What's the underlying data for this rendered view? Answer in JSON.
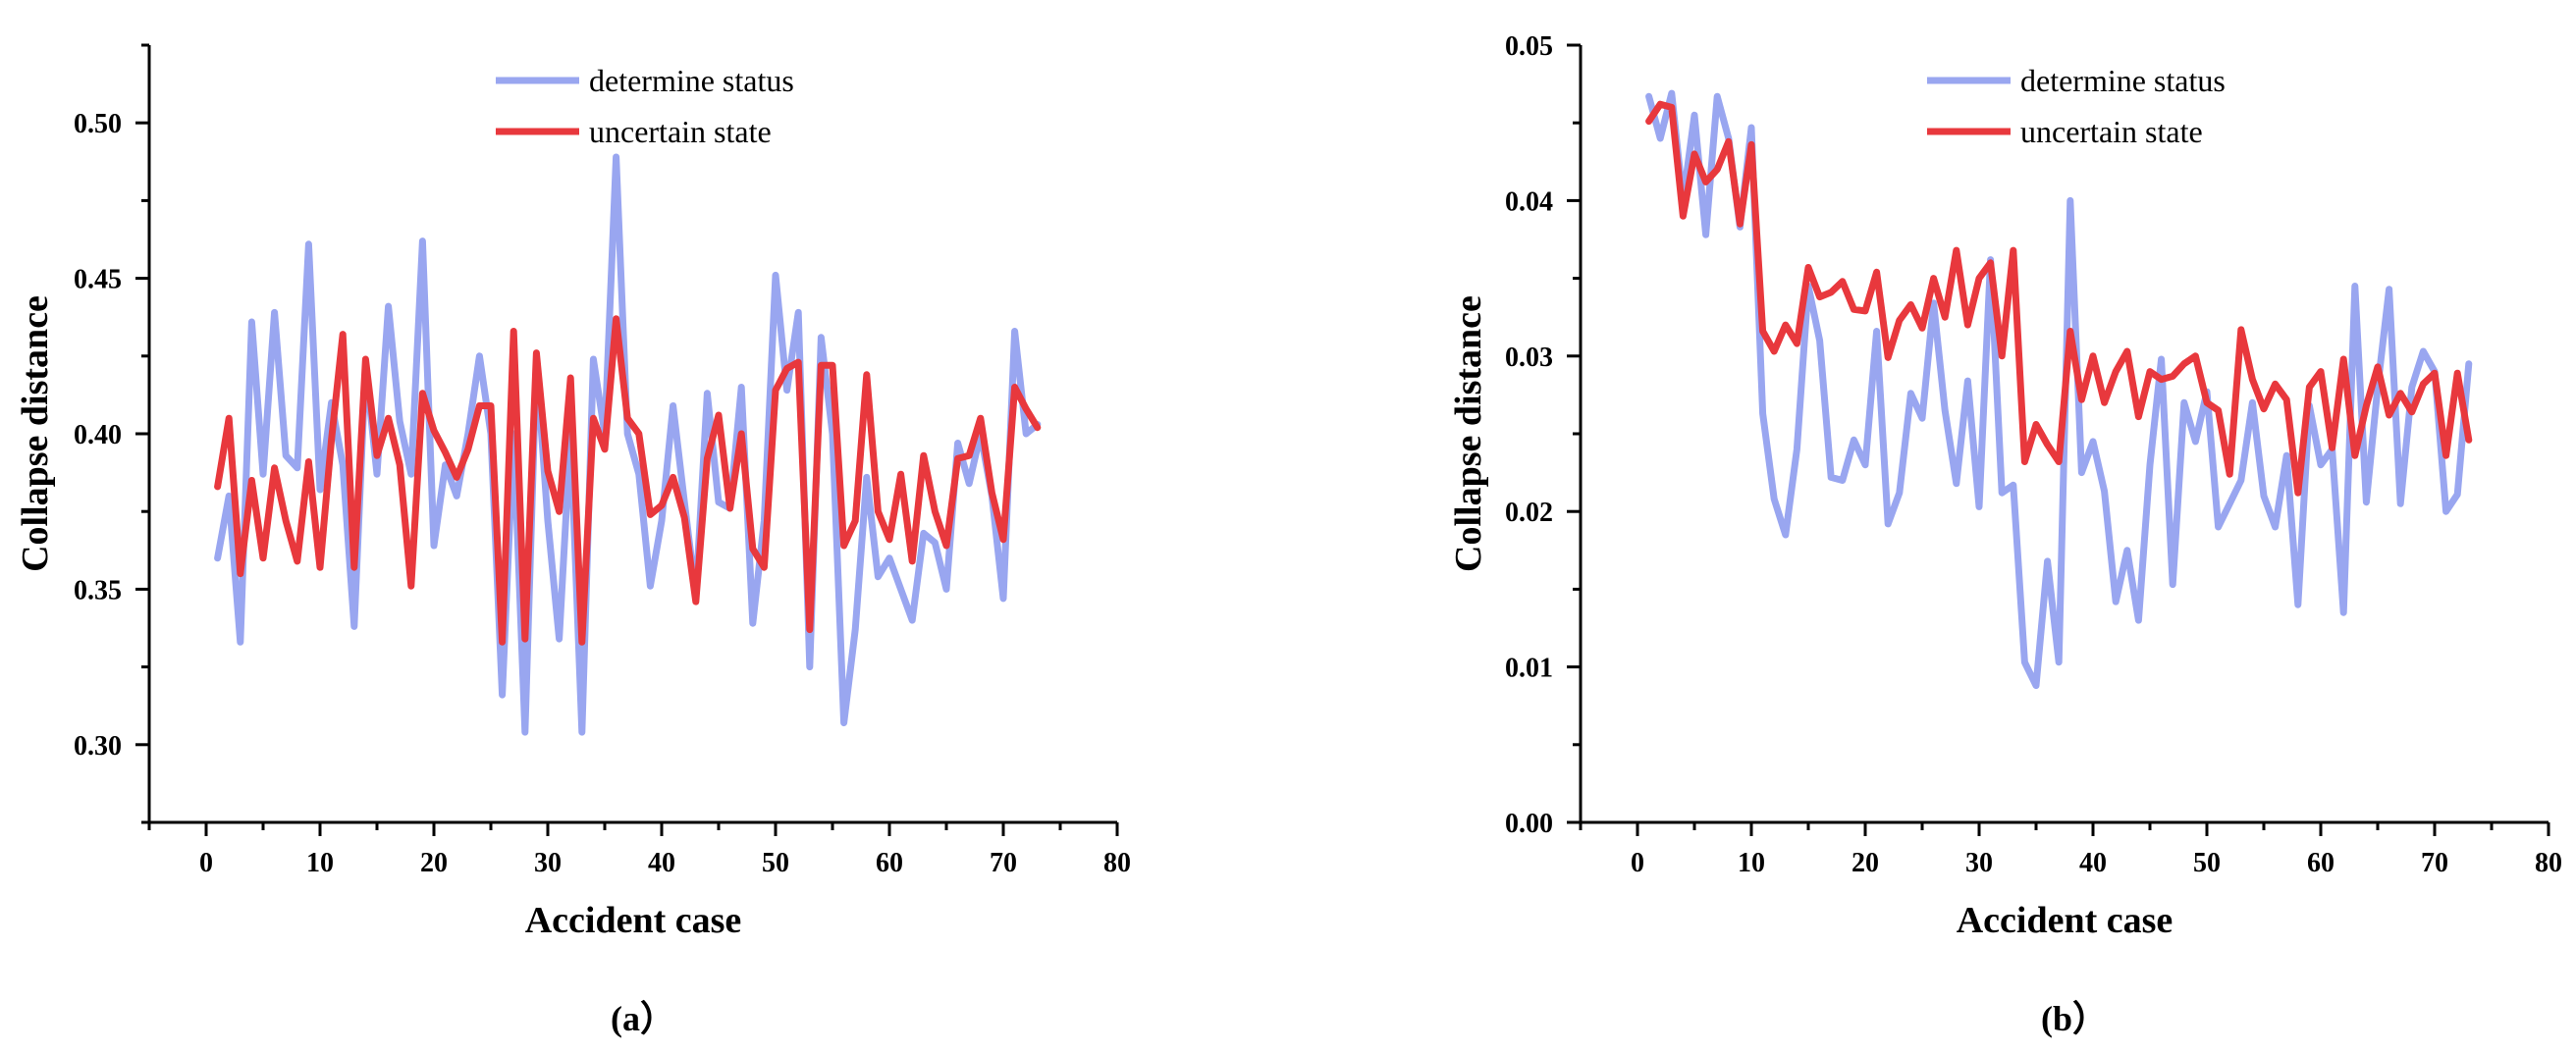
{
  "chart_data": [
    {
      "type": "line",
      "panel_label": "(a）",
      "xlabel": "Accident case",
      "ylabel": "Collapse distance",
      "xlim": [
        -5,
        80
      ],
      "ylim": [
        0.275,
        0.525
      ],
      "xticks": [
        0,
        10,
        20,
        30,
        40,
        50,
        60,
        70,
        80
      ],
      "xtick_labels": [
        "0",
        "10",
        "20",
        "30",
        "40",
        "50",
        "60",
        "70",
        "80"
      ],
      "yticks": [
        0.3,
        0.35,
        0.4,
        0.45,
        0.5
      ],
      "ytick_labels": [
        "0.30",
        "0.35",
        "0.40",
        "0.45",
        "0.50"
      ],
      "legend_position": "top-right",
      "series": [
        {
          "name": "determine status",
          "color": "#99a6f0",
          "x": [
            1,
            2,
            3,
            4,
            5,
            6,
            7,
            8,
            9,
            10,
            11,
            12,
            13,
            14,
            15,
            16,
            17,
            18,
            19,
            20,
            21,
            22,
            23,
            24,
            25,
            26,
            27,
            28,
            29,
            30,
            31,
            32,
            33,
            34,
            35,
            36,
            37,
            38,
            39,
            40,
            41,
            42,
            43,
            44,
            45,
            46,
            47,
            48,
            49,
            50,
            51,
            52,
            53,
            54,
            55,
            56,
            57,
            58,
            59,
            60,
            61,
            62,
            63,
            64,
            65,
            66,
            67,
            68,
            69,
            70,
            71,
            72,
            73
          ],
          "values": [
            0.36,
            0.38,
            0.333,
            0.436,
            0.387,
            0.439,
            0.393,
            0.389,
            0.461,
            0.382,
            0.41,
            0.39,
            0.338,
            0.422,
            0.387,
            0.441,
            0.404,
            0.387,
            0.462,
            0.364,
            0.39,
            0.38,
            0.4,
            0.425,
            0.4,
            0.316,
            0.4,
            0.304,
            0.423,
            0.372,
            0.334,
            0.4,
            0.304,
            0.424,
            0.4,
            0.489,
            0.4,
            0.387,
            0.351,
            0.372,
            0.409,
            0.378,
            0.348,
            0.413,
            0.378,
            0.376,
            0.415,
            0.339,
            0.372,
            0.451,
            0.414,
            0.439,
            0.325,
            0.431,
            0.4,
            0.307,
            0.337,
            0.386,
            0.354,
            0.36,
            0.35,
            0.34,
            0.368,
            0.365,
            0.35,
            0.397,
            0.384,
            0.4,
            0.38,
            0.347,
            0.433,
            0.4,
            0.403
          ]
        },
        {
          "name": "uncertain state",
          "color": "#e8383d",
          "x": [
            1,
            2,
            3,
            4,
            5,
            6,
            7,
            8,
            9,
            10,
            11,
            12,
            13,
            14,
            15,
            16,
            17,
            18,
            19,
            20,
            21,
            22,
            23,
            24,
            25,
            26,
            27,
            28,
            29,
            30,
            31,
            32,
            33,
            34,
            35,
            36,
            37,
            38,
            39,
            40,
            41,
            42,
            43,
            44,
            45,
            46,
            47,
            48,
            49,
            50,
            51,
            52,
            53,
            54,
            55,
            56,
            57,
            58,
            59,
            60,
            61,
            62,
            63,
            64,
            65,
            66,
            67,
            68,
            69,
            70,
            71,
            72,
            73
          ],
          "values": [
            0.383,
            0.405,
            0.355,
            0.385,
            0.36,
            0.389,
            0.372,
            0.359,
            0.391,
            0.357,
            0.398,
            0.432,
            0.357,
            0.424,
            0.393,
            0.405,
            0.39,
            0.351,
            0.413,
            0.401,
            0.394,
            0.386,
            0.395,
            0.409,
            0.409,
            0.333,
            0.433,
            0.334,
            0.426,
            0.388,
            0.375,
            0.418,
            0.333,
            0.405,
            0.395,
            0.437,
            0.405,
            0.4,
            0.374,
            0.377,
            0.386,
            0.373,
            0.346,
            0.392,
            0.406,
            0.376,
            0.4,
            0.363,
            0.357,
            0.414,
            0.421,
            0.423,
            0.337,
            0.422,
            0.422,
            0.364,
            0.372,
            0.419,
            0.375,
            0.366,
            0.387,
            0.359,
            0.393,
            0.375,
            0.364,
            0.392,
            0.393,
            0.405,
            0.381,
            0.366,
            0.415,
            0.408,
            0.402
          ]
        }
      ]
    },
    {
      "type": "line",
      "panel_label": "(b）",
      "xlabel": "Accident case",
      "ylabel": "Collapse distance",
      "xlim": [
        -5,
        80
      ],
      "ylim": [
        0,
        0.05
      ],
      "xticks": [
        0,
        10,
        20,
        30,
        40,
        50,
        60,
        70,
        80
      ],
      "xtick_labels": [
        "0",
        "10",
        "20",
        "30",
        "40",
        "50",
        "60",
        "70",
        "80"
      ],
      "yticks": [
        0.0,
        0.01,
        0.02,
        0.03,
        0.04,
        0.05
      ],
      "ytick_labels": [
        "0.00",
        "0.01",
        "0.02",
        "0.03",
        "0.04",
        "0.05"
      ],
      "legend_position": "top-right",
      "series": [
        {
          "name": "determine status",
          "color": "#99a6f0",
          "x": [
            1,
            2,
            3,
            4,
            5,
            6,
            7,
            8,
            9,
            10,
            11,
            12,
            13,
            14,
            15,
            16,
            17,
            18,
            19,
            20,
            21,
            22,
            23,
            24,
            25,
            26,
            27,
            28,
            29,
            30,
            31,
            32,
            33,
            34,
            35,
            36,
            37,
            38,
            39,
            40,
            41,
            42,
            43,
            44,
            45,
            46,
            47,
            48,
            49,
            50,
            51,
            52,
            53,
            54,
            55,
            56,
            57,
            58,
            59,
            60,
            61,
            62,
            63,
            64,
            65,
            66,
            67,
            68,
            69,
            70,
            71,
            72,
            73
          ],
          "values": [
            0.0467,
            0.044,
            0.0469,
            0.04,
            0.0455,
            0.0378,
            0.0467,
            0.044,
            0.0383,
            0.0447,
            0.0263,
            0.0208,
            0.0185,
            0.024,
            0.0345,
            0.031,
            0.0222,
            0.022,
            0.0246,
            0.023,
            0.0316,
            0.0192,
            0.0212,
            0.0276,
            0.026,
            0.0334,
            0.0265,
            0.0218,
            0.0284,
            0.0203,
            0.0362,
            0.0212,
            0.0217,
            0.0103,
            0.0088,
            0.0168,
            0.0103,
            0.04,
            0.0225,
            0.0245,
            0.0213,
            0.0142,
            0.0175,
            0.013,
            0.023,
            0.0298,
            0.0153,
            0.027,
            0.0245,
            0.0277,
            0.019,
            0.0205,
            0.022,
            0.027,
            0.021,
            0.019,
            0.0236,
            0.014,
            0.0268,
            0.023,
            0.024,
            0.0135,
            0.0345,
            0.0206,
            0.028,
            0.0343,
            0.0205,
            0.028,
            0.0303,
            0.029,
            0.02,
            0.0211,
            0.0295
          ]
        },
        {
          "name": "uncertain state",
          "color": "#e8383d",
          "x": [
            1,
            2,
            3,
            4,
            5,
            6,
            7,
            8,
            9,
            10,
            11,
            12,
            13,
            14,
            15,
            16,
            17,
            18,
            19,
            20,
            21,
            22,
            23,
            24,
            25,
            26,
            27,
            28,
            29,
            30,
            31,
            32,
            33,
            34,
            35,
            36,
            37,
            38,
            39,
            40,
            41,
            42,
            43,
            44,
            45,
            46,
            47,
            48,
            49,
            50,
            51,
            52,
            53,
            54,
            55,
            56,
            57,
            58,
            59,
            60,
            61,
            62,
            63,
            64,
            65,
            66,
            67,
            68,
            69,
            70,
            71,
            72,
            73
          ],
          "values": [
            0.0451,
            0.0462,
            0.046,
            0.039,
            0.043,
            0.0412,
            0.042,
            0.0438,
            0.0385,
            0.0436,
            0.0316,
            0.0303,
            0.032,
            0.0308,
            0.0357,
            0.0338,
            0.0341,
            0.0348,
            0.033,
            0.0329,
            0.0354,
            0.0299,
            0.0323,
            0.0333,
            0.0318,
            0.035,
            0.0325,
            0.0368,
            0.032,
            0.035,
            0.036,
            0.03,
            0.0368,
            0.0232,
            0.0256,
            0.0243,
            0.0232,
            0.0316,
            0.0272,
            0.03,
            0.027,
            0.029,
            0.0303,
            0.0261,
            0.029,
            0.0285,
            0.0287,
            0.0295,
            0.03,
            0.027,
            0.0265,
            0.0224,
            0.0317,
            0.0285,
            0.0266,
            0.0282,
            0.0272,
            0.0212,
            0.028,
            0.029,
            0.0241,
            0.0298,
            0.0236,
            0.0268,
            0.0293,
            0.0262,
            0.0276,
            0.0264,
            0.0282,
            0.0289,
            0.0236,
            0.0289,
            0.0246
          ]
        }
      ]
    }
  ]
}
